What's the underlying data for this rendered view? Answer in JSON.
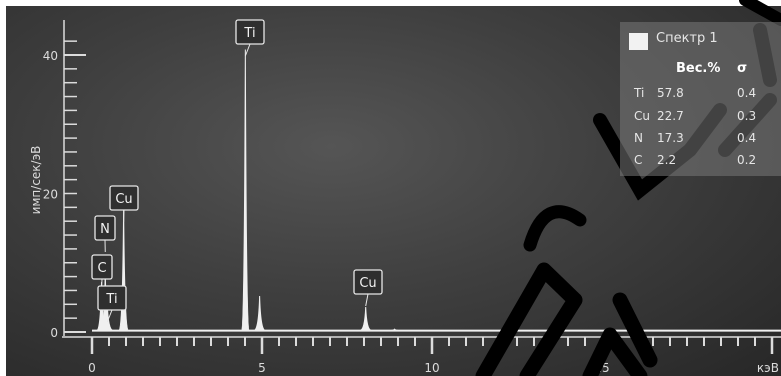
{
  "colors": {
    "background": "#3a3a3a",
    "spectrum": "#f0f0f0",
    "axis": "#dcdcdc",
    "watermark": "#000000"
  },
  "chart_data": {
    "type": "line",
    "title": "",
    "xlabel": "кэВ",
    "ylabel": "имп/сек/эВ",
    "xlim": [
      0,
      20
    ],
    "ylim": [
      0,
      10.5
    ],
    "x_ticks": [
      "0",
      "5",
      "10",
      "15"
    ],
    "y_ticks": [
      "0",
      "20",
      "40"
    ],
    "peaks": [
      {
        "element": "C",
        "energy_kev": 0.28,
        "height": 1.8
      },
      {
        "element": "N",
        "energy_kev": 0.39,
        "height": 2.2
      },
      {
        "element": "Ti",
        "energy_kev": 0.45,
        "height": 1.0
      },
      {
        "element": "Cu",
        "energy_kev": 0.93,
        "height": 4.5
      },
      {
        "element": "Ti",
        "energy_kev": 4.51,
        "height": 10.2
      },
      {
        "element": "",
        "energy_kev": 4.93,
        "height": 1.3
      },
      {
        "element": "Cu",
        "energy_kev": 8.05,
        "height": 0.9
      },
      {
        "element": "",
        "energy_kev": 8.9,
        "height": 0.1
      }
    ],
    "labels": [
      {
        "text": "C",
        "energy_kev": 0.28
      },
      {
        "text": "N",
        "energy_kev": 0.39
      },
      {
        "text": "Ti",
        "energy_kev": 0.45
      },
      {
        "text": "Cu",
        "energy_kev": 0.93
      },
      {
        "text": "Ti",
        "energy_kev": 4.51
      },
      {
        "text": "Cu",
        "energy_kev": 8.05
      }
    ],
    "legend": {
      "position": "top-right",
      "title": "Спектр 1",
      "headers": [
        "Вес.%",
        "σ"
      ],
      "rows": [
        {
          "element": "Ti",
          "wt": "57.8",
          "sigma": "0.4"
        },
        {
          "element": "Cu",
          "wt": "22.7",
          "sigma": "0.3"
        },
        {
          "element": "N",
          "wt": "17.3",
          "sigma": "0.4"
        },
        {
          "element": "C",
          "wt": "2.2",
          "sigma": "0.2"
        }
      ]
    }
  }
}
